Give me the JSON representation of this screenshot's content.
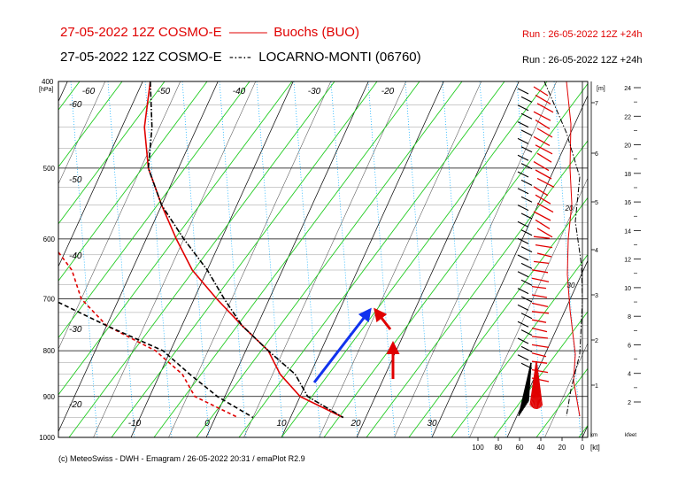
{
  "header": {
    "line1_left": "27-05-2022 12Z COSMO-E",
    "line1_station": "Buochs (BUO)",
    "line1_run": "Run : 26-05-2022 12Z +24h",
    "line2_left": "27-05-2022 12Z COSMO-E",
    "line2_station": "LOCARNO-MONTI (06760)",
    "line2_run": "Run : 26-05-2022 12Z +24h"
  },
  "footer": "(c) MeteoSwiss - DWH - Emagram / 26-05-2022  20:31  / emaPlot R2.9",
  "colors": {
    "buochs": "#e00000",
    "locarno": "#000000",
    "dry_adiabat": "#22cc22",
    "moist_aux": "#00aaff",
    "isotherm": "#000000",
    "arrow_blue": "#1133ee",
    "arrow_red": "#e00000"
  },
  "chart_data": {
    "type": "emagram",
    "pressure_axis": {
      "unit": "[hPa]",
      "ticks": [
        400,
        500,
        600,
        700,
        800,
        900,
        1000
      ],
      "range": [
        1000,
        400
      ]
    },
    "temperature_labels_bottom": [
      -10,
      0,
      10,
      20,
      30
    ],
    "temperature_labels_top": [
      -60,
      -50,
      -40,
      -30,
      -20
    ],
    "temperature_labels_left": [
      -60,
      -50,
      -40,
      -30,
      -20
    ],
    "height_axis_m": {
      "unit": "[m]",
      "ticks": [
        1,
        2,
        3,
        4,
        5,
        6,
        7
      ]
    },
    "height_axis_kfeet": {
      "unit": "kfeet",
      "ticks": [
        2,
        4,
        6,
        8,
        10,
        12,
        14,
        16,
        18,
        20,
        22,
        24
      ]
    },
    "wind_speed_axis": {
      "unit": "[kt]",
      "ticks": [
        100,
        80,
        60,
        40,
        20,
        0
      ],
      "label_km": "km"
    },
    "wind_profile_labels": [
      "20",
      "30"
    ],
    "series": [
      {
        "name": "Buochs (BUO)",
        "color": "#e00000",
        "temperature": [
          {
            "p": 400,
            "t": -29
          },
          {
            "p": 450,
            "t": -27
          },
          {
            "p": 500,
            "t": -24
          },
          {
            "p": 550,
            "t": -20
          },
          {
            "p": 600,
            "t": -16
          },
          {
            "p": 650,
            "t": -12
          },
          {
            "p": 700,
            "t": -7
          },
          {
            "p": 750,
            "t": -2
          },
          {
            "p": 800,
            "t": 3
          },
          {
            "p": 850,
            "t": 6
          },
          {
            "p": 900,
            "t": 10
          },
          {
            "p": 950,
            "t": 17
          }
        ],
        "dewpoint": [
          {
            "p": 400,
            "t": -43
          },
          {
            "p": 450,
            "t": -39
          },
          {
            "p": 500,
            "t": -36
          },
          {
            "p": 550,
            "t": -36
          },
          {
            "p": 600,
            "t": -33
          },
          {
            "p": 650,
            "t": -28
          },
          {
            "p": 700,
            "t": -25
          },
          {
            "p": 750,
            "t": -20
          },
          {
            "p": 800,
            "t": -12
          },
          {
            "p": 850,
            "t": -7
          },
          {
            "p": 900,
            "t": -4
          },
          {
            "p": 950,
            "t": 3
          }
        ]
      },
      {
        "name": "LOCARNO-MONTI (06760)",
        "color": "#000000",
        "temperature": [
          {
            "p": 400,
            "t": -29
          },
          {
            "p": 450,
            "t": -26
          },
          {
            "p": 500,
            "t": -24
          },
          {
            "p": 550,
            "t": -20
          },
          {
            "p": 600,
            "t": -15
          },
          {
            "p": 650,
            "t": -10
          },
          {
            "p": 700,
            "t": -6
          },
          {
            "p": 750,
            "t": -2
          },
          {
            "p": 800,
            "t": 3
          },
          {
            "p": 850,
            "t": 8
          },
          {
            "p": 900,
            "t": 11
          },
          {
            "p": 950,
            "t": 17
          }
        ],
        "dewpoint": [
          {
            "p": 400,
            "t": -57
          },
          {
            "p": 450,
            "t": -55
          },
          {
            "p": 500,
            "t": -47
          },
          {
            "p": 550,
            "t": -46
          },
          {
            "p": 600,
            "t": -43
          },
          {
            "p": 650,
            "t": -36
          },
          {
            "p": 700,
            "t": -29
          },
          {
            "p": 750,
            "t": -20
          },
          {
            "p": 800,
            "t": -11
          },
          {
            "p": 850,
            "t": -6
          },
          {
            "p": 900,
            "t": -1
          },
          {
            "p": 950,
            "t": 5
          }
        ]
      }
    ]
  }
}
